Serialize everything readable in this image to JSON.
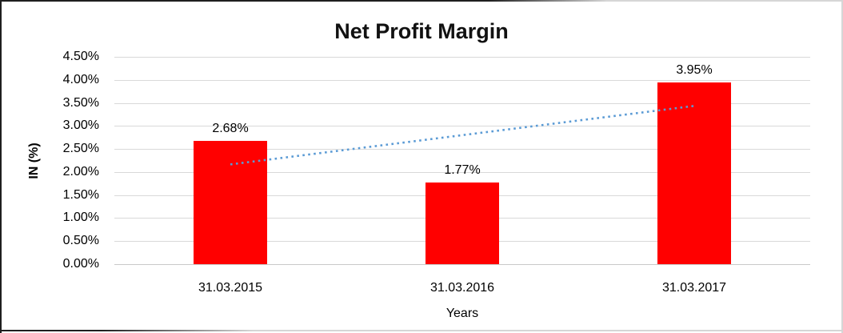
{
  "chart_data": {
    "type": "bar",
    "title": "Net Profit Margin",
    "xlabel": "Years",
    "ylabel": "IN (%)",
    "categories": [
      "31.03.2015",
      "31.03.2016",
      "31.03.2017"
    ],
    "values": [
      2.68,
      1.77,
      3.95
    ],
    "data_labels": [
      "2.68%",
      "1.77%",
      "3.95%"
    ],
    "ylim": [
      0,
      4.5
    ],
    "ytick_step": 0.5,
    "ytick_labels": [
      "0.00%",
      "0.50%",
      "1.00%",
      "1.50%",
      "2.00%",
      "2.50%",
      "3.00%",
      "3.50%",
      "4.00%",
      "4.50%"
    ],
    "grid": true,
    "legend_position": "none",
    "bar_color": "#FF0000",
    "trendline": {
      "type": "linear",
      "style": "dotted",
      "color": "#5B9BD5",
      "start_value": 2.165,
      "end_value": 3.435
    }
  },
  "colors": {
    "gridline": "#D9D9D9",
    "axis_line": "#C9C9C9",
    "background": "#FFFFFF",
    "title_text": "#111111",
    "label_text": "#000000"
  }
}
